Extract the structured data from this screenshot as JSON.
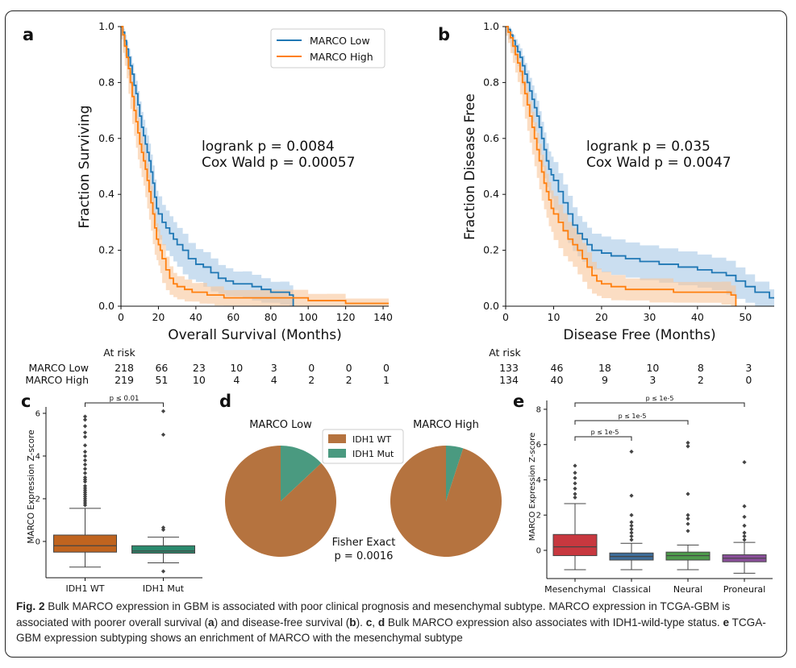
{
  "colors": {
    "low": "#1f77b4",
    "high": "#ff7f0e",
    "low_band": "#a6c8e6",
    "high_band": "#f8c79b",
    "wt": "#b5733f",
    "mut": "#4a9a80",
    "mes": "#c8383f",
    "cla": "#3e6d9a",
    "neu": "#4e9a4c",
    "pro": "#8a4f9a",
    "box_wt": "#c0641f",
    "box_mut": "#2b8a6e"
  },
  "panel_a": {
    "letter": "a",
    "chart_data": {
      "type": "line",
      "xlabel": "Overall Survival (Months)",
      "ylabel": "Fraction Surviving",
      "xlim": [
        0,
        143
      ],
      "ylim": [
        0,
        1.0
      ],
      "xticks": [
        "0",
        "20",
        "40",
        "60",
        "80",
        "100",
        "120",
        "140"
      ],
      "yticks": [
        "0.0",
        "0.2",
        "0.4",
        "0.6",
        "0.8",
        "1.0"
      ],
      "legend": [
        "MARCO Low",
        "MARCO High"
      ],
      "stats": [
        "logrank p = 0.0084",
        "Cox Wald p = 0.00057"
      ],
      "series": [
        {
          "name": "MARCO Low",
          "x": [
            0,
            1,
            2,
            3,
            4,
            5,
            6,
            7,
            8,
            9,
            10,
            11,
            12,
            13,
            14,
            15,
            16,
            17,
            18,
            19,
            20,
            22,
            24,
            26,
            28,
            30,
            33,
            36,
            40,
            44,
            48,
            52,
            56,
            60,
            65,
            70,
            75,
            80,
            85,
            90,
            92
          ],
          "y": [
            1.0,
            0.98,
            0.95,
            0.92,
            0.89,
            0.86,
            0.83,
            0.79,
            0.76,
            0.72,
            0.68,
            0.64,
            0.61,
            0.58,
            0.55,
            0.52,
            0.48,
            0.44,
            0.39,
            0.35,
            0.33,
            0.3,
            0.28,
            0.26,
            0.24,
            0.22,
            0.2,
            0.17,
            0.15,
            0.14,
            0.12,
            0.1,
            0.09,
            0.08,
            0.08,
            0.07,
            0.06,
            0.05,
            0.05,
            0.04,
            0.0
          ]
        },
        {
          "name": "MARCO High",
          "x": [
            0,
            1,
            2,
            3,
            4,
            5,
            6,
            7,
            8,
            9,
            10,
            11,
            12,
            13,
            14,
            15,
            16,
            17,
            18,
            19,
            20,
            21,
            22,
            24,
            26,
            28,
            30,
            34,
            38,
            42,
            46,
            50,
            55,
            60,
            70,
            80,
            90,
            100,
            110,
            120,
            143
          ],
          "y": [
            1.0,
            0.97,
            0.93,
            0.89,
            0.85,
            0.8,
            0.75,
            0.7,
            0.66,
            0.62,
            0.58,
            0.55,
            0.52,
            0.49,
            0.45,
            0.41,
            0.37,
            0.33,
            0.28,
            0.24,
            0.22,
            0.2,
            0.17,
            0.13,
            0.1,
            0.08,
            0.07,
            0.06,
            0.05,
            0.05,
            0.04,
            0.04,
            0.03,
            0.03,
            0.03,
            0.03,
            0.03,
            0.02,
            0.02,
            0.01,
            0.01
          ]
        }
      ]
    },
    "at_risk_title": "At risk",
    "at_risk_rows": [
      {
        "label": "MARCO Low",
        "values": [
          "218",
          "66",
          "23",
          "10",
          "3",
          "0",
          "0",
          "0"
        ]
      },
      {
        "label": "MARCO High",
        "values": [
          "219",
          "51",
          "10",
          "4",
          "4",
          "2",
          "2",
          "1"
        ]
      }
    ]
  },
  "panel_b": {
    "letter": "b",
    "chart_data": {
      "type": "line",
      "xlabel": "Disease Free (Months)",
      "ylabel": "Fraction Disease Free",
      "xlim": [
        0,
        56
      ],
      "ylim": [
        0,
        1.0
      ],
      "xticks": [
        "0",
        "10",
        "20",
        "30",
        "40",
        "50"
      ],
      "yticks": [
        "0.0",
        "0.2",
        "0.4",
        "0.6",
        "0.8",
        "1.0"
      ],
      "stats": [
        "logrank p = 0.035",
        "Cox Wald p = 0.0047"
      ],
      "series": [
        {
          "name": "MARCO Low",
          "x": [
            0,
            0.5,
            1,
            1.5,
            2,
            2.5,
            3,
            3.5,
            4,
            4.5,
            5,
            5.5,
            6,
            6.5,
            7,
            7.5,
            8,
            8.5,
            9,
            9.5,
            10,
            11,
            12,
            13,
            14,
            15,
            16,
            17,
            18,
            20,
            22,
            25,
            28,
            32,
            36,
            40,
            43,
            46,
            48,
            50,
            52,
            55,
            56
          ],
          "y": [
            1.0,
            0.99,
            0.97,
            0.95,
            0.93,
            0.91,
            0.89,
            0.86,
            0.83,
            0.8,
            0.77,
            0.74,
            0.71,
            0.68,
            0.64,
            0.6,
            0.56,
            0.52,
            0.49,
            0.47,
            0.45,
            0.41,
            0.37,
            0.33,
            0.29,
            0.26,
            0.24,
            0.22,
            0.2,
            0.19,
            0.18,
            0.17,
            0.16,
            0.15,
            0.14,
            0.13,
            0.12,
            0.11,
            0.09,
            0.07,
            0.05,
            0.03,
            0.03
          ]
        },
        {
          "name": "MARCO High",
          "x": [
            0,
            0.5,
            1,
            1.5,
            2,
            2.5,
            3,
            3.5,
            4,
            4.5,
            5,
            5.5,
            6,
            6.5,
            7,
            7.5,
            8,
            8.5,
            9,
            9.5,
            10,
            11,
            12,
            13,
            14,
            15,
            16,
            17,
            18,
            19,
            20,
            22,
            25,
            30,
            35,
            40,
            45,
            47,
            48
          ],
          "y": [
            1.0,
            0.98,
            0.96,
            0.93,
            0.9,
            0.87,
            0.84,
            0.8,
            0.76,
            0.72,
            0.68,
            0.64,
            0.6,
            0.56,
            0.52,
            0.48,
            0.44,
            0.41,
            0.38,
            0.35,
            0.33,
            0.3,
            0.27,
            0.24,
            0.22,
            0.2,
            0.17,
            0.14,
            0.11,
            0.09,
            0.08,
            0.07,
            0.06,
            0.06,
            0.05,
            0.05,
            0.05,
            0.04,
            0.0
          ]
        }
      ]
    },
    "at_risk_title": "At risk",
    "at_risk_rows": [
      {
        "label": "MARCO Low",
        "values": [
          "133",
          "46",
          "18",
          "10",
          "8",
          "3"
        ]
      },
      {
        "label": "MARCO High",
        "values": [
          "134",
          "40",
          "9",
          "3",
          "2",
          "0"
        ]
      }
    ]
  },
  "panel_c": {
    "letter": "c",
    "chart_data": {
      "type": "box",
      "ylabel": "MARCO Expression Z-score",
      "categories": [
        "IDH1 WT",
        "IDH1 Mut"
      ],
      "ylim": [
        -1.7,
        6.3
      ],
      "yticks": [
        "0",
        "2",
        "4",
        "6"
      ],
      "boxes": [
        {
          "q1": -0.5,
          "median": -0.2,
          "q3": 0.3,
          "whisker_low": -1.2,
          "whisker_high": 1.55,
          "outliers": [
            1.7,
            1.8,
            1.9,
            2.0,
            2.1,
            2.2,
            2.3,
            2.4,
            2.5,
            2.6,
            2.8,
            2.9,
            3.0,
            3.2,
            3.4,
            3.6,
            3.8,
            4.0,
            4.2,
            4.5,
            4.9,
            5.1,
            5.4,
            5.7,
            5.85
          ]
        },
        {
          "q1": -0.55,
          "median": -0.45,
          "q3": -0.2,
          "whisker_low": -1.0,
          "whisker_high": 0.2,
          "outliers": [
            0.55,
            0.65,
            -1.4,
            5.0,
            6.1
          ]
        }
      ],
      "significance": "p ≤ 0.01"
    }
  },
  "panel_d": {
    "letter": "d",
    "chart_data": {
      "type": "pie",
      "legend": [
        "IDH1 WT",
        "IDH1 Mut"
      ],
      "pies": [
        {
          "title": "MARCO Low",
          "values": [
            0.87,
            0.13
          ]
        },
        {
          "title": "MARCO High",
          "values": [
            0.95,
            0.05
          ]
        }
      ],
      "stats": [
        "Fisher Exact",
        "p = 0.0016"
      ]
    }
  },
  "panel_e": {
    "letter": "e",
    "chart_data": {
      "type": "box",
      "ylabel": "MARCO Expression Z-score",
      "categories": [
        "Mesenchymal",
        "Classical",
        "Neural",
        "Proneural"
      ],
      "ylim": [
        -1.6,
        8.5
      ],
      "yticks": [
        "0",
        "2",
        "4",
        "6",
        "8"
      ],
      "boxes": [
        {
          "q1": -0.3,
          "median": 0.2,
          "q3": 0.9,
          "whisker_low": -1.1,
          "whisker_high": 2.65,
          "outliers": [
            3.0,
            3.2,
            3.5,
            3.8,
            4.1,
            4.4,
            4.8
          ]
        },
        {
          "q1": -0.55,
          "median": -0.35,
          "q3": -0.15,
          "whisker_low": -1.1,
          "whisker_high": 0.4,
          "outliers": [
            0.6,
            0.8,
            1.0,
            1.2,
            1.4,
            1.6,
            2.0,
            3.1,
            5.6
          ]
        },
        {
          "q1": -0.55,
          "median": -0.3,
          "q3": -0.1,
          "whisker_low": -1.1,
          "whisker_high": 0.3,
          "outliers": [
            1.1,
            1.5,
            1.8,
            2.0,
            3.2,
            5.9,
            6.1
          ]
        },
        {
          "q1": -0.65,
          "median": -0.45,
          "q3": -0.25,
          "whisker_low": -1.3,
          "whisker_high": 0.45,
          "outliers": [
            0.6,
            0.8,
            1.0,
            1.4,
            1.9,
            2.5,
            5.0
          ]
        }
      ],
      "significance": [
        "p ≤ 1e-5",
        "p ≤ 1e-5",
        "p ≤ 1e-5"
      ]
    }
  },
  "caption": {
    "label": "Fig. 2",
    "text1": " Bulk MARCO expression in GBM is associated with poor clinical prognosis and mesenchymal subtype. MARCO expression in TCGA-GBM is associated with poorer overall survival (",
    "a": "a",
    "text2": ") and disease-free survival (",
    "b": "b",
    "text3": "). ",
    "c": "c",
    "text4": ", ",
    "d": "d",
    "text5": " Bulk MARCO expression also associates with IDH1-wild-type status. ",
    "e": "e",
    "text6": " TCGA-GBM expression subtyping shows an enrichment of MARCO with the mesenchymal subtype"
  }
}
